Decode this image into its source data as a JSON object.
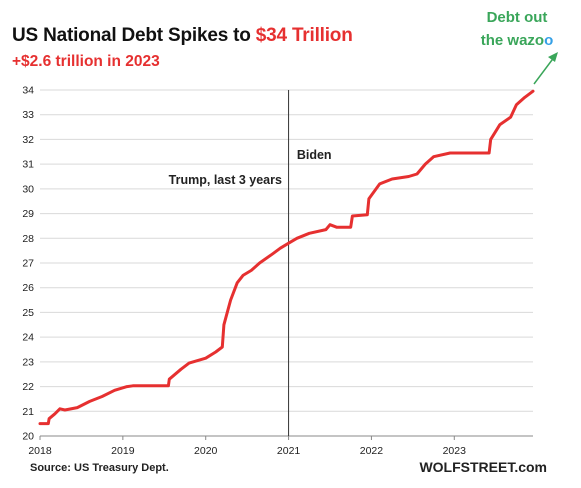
{
  "title": {
    "prefix": "US National Debt Spikes to ",
    "highlight": "$34 Trillion"
  },
  "subtitle": "+$2.6 trillion in 2023",
  "note": {
    "line1": "Debt out",
    "line2": "the wazo",
    "last_char": "o"
  },
  "source": "Source: US Treasury Dept.",
  "brand": "WOLFSTREET.com",
  "colors": {
    "line": "#e63030",
    "accent": "#e63030",
    "note": "#3aa65a",
    "note_last": "#35a0e6"
  },
  "chart_data": {
    "type": "line",
    "title": "US National Debt Spikes to $34 Trillion",
    "subtitle": "+$2.6 trillion in 2023",
    "xlabel": "",
    "ylabel": "",
    "xlim": [
      2018.0,
      2023.95
    ],
    "ylim": [
      20,
      34
    ],
    "x_ticks": [
      "2018",
      "2019",
      "2020",
      "2021",
      "2022",
      "2023"
    ],
    "y_ticks": [
      20,
      21,
      22,
      23,
      24,
      25,
      26,
      27,
      28,
      29,
      30,
      31,
      32,
      33,
      34
    ],
    "grid": "horizontal",
    "legend": "none",
    "series": [
      {
        "values": [
          [
            2018.0,
            20.5
          ],
          [
            2018.1,
            20.5
          ],
          [
            2018.11,
            20.7
          ],
          [
            2018.18,
            20.9
          ],
          [
            2018.24,
            21.1
          ],
          [
            2018.3,
            21.05
          ],
          [
            2018.45,
            21.15
          ],
          [
            2018.6,
            21.4
          ],
          [
            2018.75,
            21.6
          ],
          [
            2018.9,
            21.85
          ],
          [
            2019.05,
            22.0
          ],
          [
            2019.12,
            22.03
          ],
          [
            2019.55,
            22.03
          ],
          [
            2019.56,
            22.3
          ],
          [
            2019.7,
            22.7
          ],
          [
            2019.8,
            22.95
          ],
          [
            2020.0,
            23.15
          ],
          [
            2020.12,
            23.4
          ],
          [
            2020.2,
            23.6
          ],
          [
            2020.22,
            24.5
          ],
          [
            2020.3,
            25.5
          ],
          [
            2020.38,
            26.2
          ],
          [
            2020.45,
            26.5
          ],
          [
            2020.55,
            26.7
          ],
          [
            2020.65,
            27.0
          ],
          [
            2020.8,
            27.35
          ],
          [
            2020.9,
            27.6
          ],
          [
            2021.0,
            27.8
          ],
          [
            2021.1,
            28.0
          ],
          [
            2021.25,
            28.2
          ],
          [
            2021.45,
            28.35
          ],
          [
            2021.5,
            28.55
          ],
          [
            2021.58,
            28.45
          ],
          [
            2021.75,
            28.45
          ],
          [
            2021.77,
            28.9
          ],
          [
            2021.95,
            28.95
          ],
          [
            2021.97,
            29.6
          ],
          [
            2022.1,
            30.2
          ],
          [
            2022.25,
            30.4
          ],
          [
            2022.45,
            30.5
          ],
          [
            2022.55,
            30.6
          ],
          [
            2022.65,
            31.0
          ],
          [
            2022.75,
            31.3
          ],
          [
            2022.95,
            31.45
          ],
          [
            2023.05,
            31.45
          ],
          [
            2023.42,
            31.45
          ],
          [
            2023.44,
            32.0
          ],
          [
            2023.55,
            32.6
          ],
          [
            2023.68,
            32.9
          ],
          [
            2023.75,
            33.4
          ],
          [
            2023.85,
            33.7
          ],
          [
            2023.95,
            33.95
          ]
        ]
      }
    ],
    "annotations": [
      {
        "text": "Trump, last 3 years",
        "x": 2020.92,
        "y": 30.2
      },
      {
        "text": "Biden",
        "x": 2021.1,
        "y": 31.2
      }
    ],
    "vertical_line": {
      "x": 2021.0
    }
  }
}
